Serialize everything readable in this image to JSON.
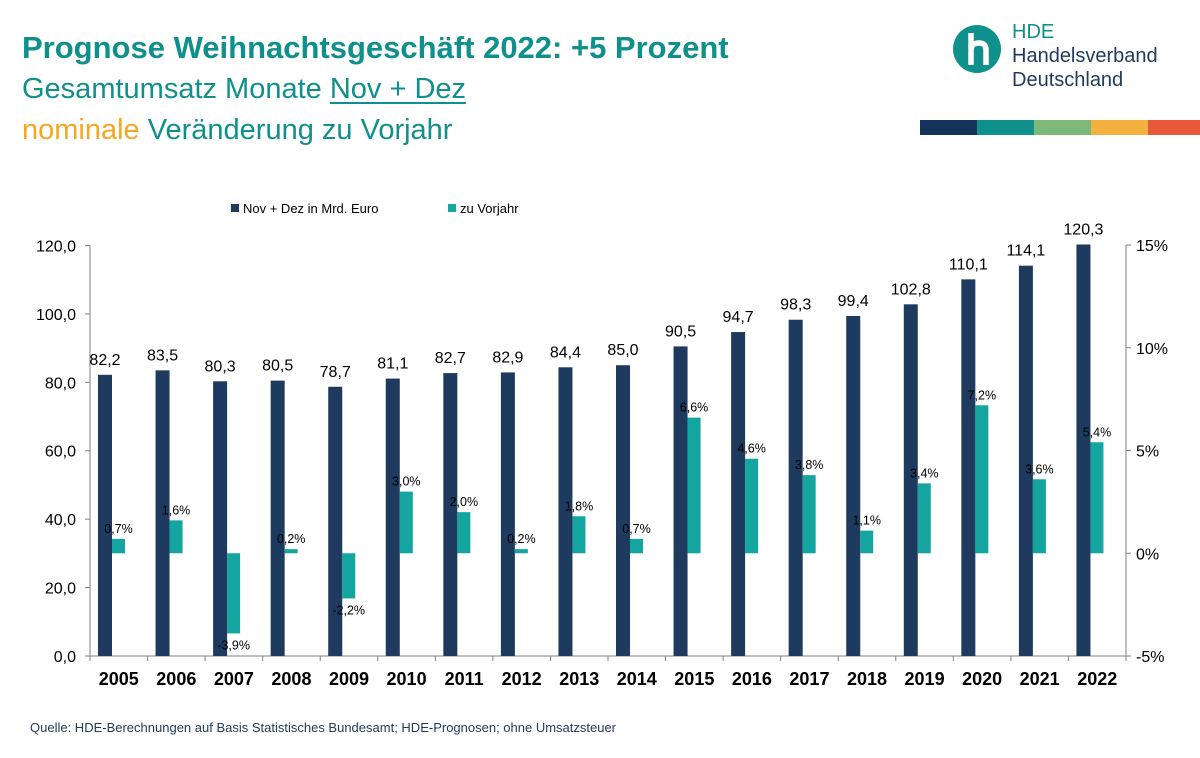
{
  "header": {
    "title": "Prognose Weihnachtsgeschäft 2022: +5 Prozent",
    "subtitle_prefix": "Gesamtumsatz Monate ",
    "subtitle_underlined": "Nov + Dez ",
    "subtitle2_highlight": "nominale",
    "subtitle2_rest": " Veränderung zu Vorjahr"
  },
  "logo": {
    "abbr": "HDE",
    "line1": "Handelsverband",
    "line2": "Deutschland",
    "stripe_colors": [
      "#15325b",
      "#10908c",
      "#7cb87a",
      "#f5b13d",
      "#e8583a"
    ]
  },
  "source": "Quelle: HDE-Berechnungen auf Basis Statistisches Bundesamt; HDE-Prognosen; ohne Umsatzsteuer",
  "chart_data": {
    "type": "bar",
    "categories": [
      "2005",
      "2006",
      "2007",
      "2008",
      "2009",
      "2010",
      "2011",
      "2012",
      "2013",
      "2014",
      "2015",
      "2016",
      "2017",
      "2018",
      "2019",
      "2020",
      "2021",
      "2022"
    ],
    "series": [
      {
        "name": "Nov + Dez in Mrd. Euro",
        "axis": "left",
        "color": "#1f3a5f",
        "values": [
          82.2,
          83.5,
          80.3,
          80.5,
          78.7,
          81.1,
          82.7,
          82.9,
          84.4,
          85.0,
          90.5,
          94.7,
          98.3,
          99.4,
          102.8,
          110.1,
          114.1,
          120.3
        ],
        "labels": [
          "82,2",
          "83,5",
          "80,3",
          "80,5",
          "78,7",
          "81,1",
          "82,7",
          "82,9",
          "84,4",
          "85,0",
          "90,5",
          "94,7",
          "98,3",
          "99,4",
          "102,8",
          "110,1",
          "114,1",
          "120,3"
        ]
      },
      {
        "name": "zu Vorjahr",
        "axis": "right",
        "color": "#14a5a0",
        "values": [
          0.7,
          1.6,
          -3.9,
          0.2,
          -2.2,
          3.0,
          2.0,
          0.2,
          1.8,
          0.7,
          6.6,
          4.6,
          3.8,
          1.1,
          3.4,
          7.2,
          3.6,
          5.4
        ],
        "labels": [
          "0,7%",
          "1,6%",
          "-3,9%",
          "0,2%",
          "-2,2%",
          "3,0%",
          "2,0%",
          "0,2%",
          "1,8%",
          "0,7%",
          "6,6%",
          "4,6%",
          "3,8%",
          "1,1%",
          "3,4%",
          "7,2%",
          "3,6%",
          "5,4%"
        ]
      }
    ],
    "y_left": {
      "min": 0,
      "max": 120,
      "ticks": [
        "0,0",
        "20,0",
        "40,0",
        "60,0",
        "80,0",
        "100,0",
        "120,0"
      ]
    },
    "y_right": {
      "min": -5,
      "max": 15,
      "ticks": [
        "-5%",
        "0%",
        "5%",
        "10%",
        "15%"
      ]
    },
    "legend_position": "top",
    "grid": false
  }
}
